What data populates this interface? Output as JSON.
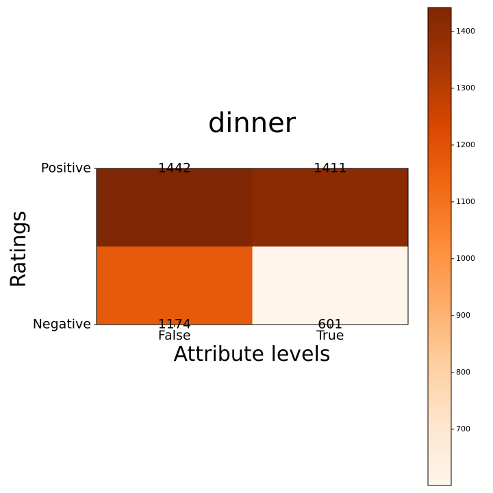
{
  "chart_data": {
    "type": "heatmap",
    "title": "dinner",
    "xlabel": "Attribute levels",
    "ylabel": "Ratings",
    "x_categories": [
      "False",
      "True"
    ],
    "y_categories": [
      "Positive",
      "Negative"
    ],
    "values": [
      [
        1442,
        1411
      ],
      [
        1174,
        601
      ]
    ],
    "colormap": "Oranges",
    "colorbar": {
      "min": 601,
      "max": 1442,
      "ticks": [
        700,
        800,
        900,
        1000,
        1100,
        1200,
        1300,
        1400
      ]
    }
  }
}
